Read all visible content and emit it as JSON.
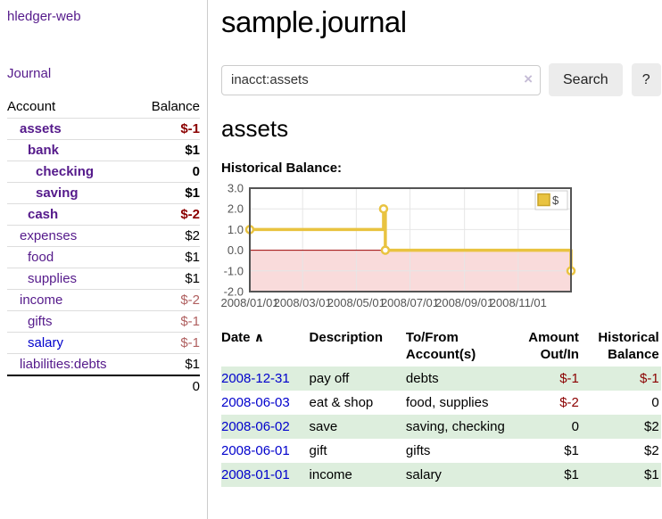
{
  "colors": {
    "link_purple": "#551a8b",
    "link_blue": "#0000cc",
    "negative_strong": "#8b0000",
    "negative_soft": "#b06060",
    "row_stripe_green": "#ddeedd",
    "series_gold": "#e9c340",
    "negative_region_pink": "#f9dbdb",
    "zero_line_red": "#9c0000",
    "grid_gray": "#e6e6e6",
    "chart_border_gray": "#545454",
    "button_gray": "#ececec"
  },
  "sidebar": {
    "app_title": "hledger-web",
    "nav": {
      "journal": "Journal"
    },
    "accounts_table": {
      "headers": {
        "account": "Account",
        "balance": "Balance"
      },
      "rows": [
        {
          "name": "assets",
          "depth": 1,
          "bold": true,
          "link": "purple",
          "balance": "$-1",
          "balance_style": "neg-strong",
          "balance_bold": true
        },
        {
          "name": "bank",
          "depth": 2,
          "bold": true,
          "link": "purple",
          "balance": "$1",
          "balance_style": "",
          "balance_bold": true
        },
        {
          "name": "checking",
          "depth": 3,
          "bold": true,
          "link": "purple",
          "balance": "0",
          "balance_style": "",
          "balance_bold": true
        },
        {
          "name": "saving",
          "depth": 3,
          "bold": true,
          "link": "purple",
          "balance": "$1",
          "balance_style": "",
          "balance_bold": true
        },
        {
          "name": "cash",
          "depth": 2,
          "bold": true,
          "link": "purple",
          "balance": "$-2",
          "balance_style": "neg-strong",
          "balance_bold": true
        },
        {
          "name": "expenses",
          "depth": 1,
          "bold": false,
          "link": "purple",
          "balance": "$2",
          "balance_style": "",
          "balance_bold": false
        },
        {
          "name": "food",
          "depth": 2,
          "bold": false,
          "link": "purple",
          "balance": "$1",
          "balance_style": "",
          "balance_bold": false
        },
        {
          "name": "supplies",
          "depth": 2,
          "bold": false,
          "link": "purple",
          "balance": "$1",
          "balance_style": "",
          "balance_bold": false
        },
        {
          "name": "income",
          "depth": 1,
          "bold": false,
          "link": "purple",
          "balance": "$-2",
          "balance_style": "neg-soft",
          "balance_bold": false
        },
        {
          "name": "gifts",
          "depth": 2,
          "bold": false,
          "link": "purple",
          "balance": "$-1",
          "balance_style": "neg-soft",
          "balance_bold": false
        },
        {
          "name": "salary",
          "depth": 2,
          "bold": false,
          "link": "blue",
          "balance": "$-1",
          "balance_style": "neg-soft",
          "balance_bold": false
        },
        {
          "name": "liabilities:debts",
          "depth": 1,
          "bold": false,
          "link": "purple",
          "balance": "$1",
          "balance_style": "",
          "balance_bold": false
        }
      ],
      "total": "0"
    }
  },
  "main": {
    "title": "sample.journal",
    "search": {
      "value": "inacct:assets",
      "clear_icon": "×",
      "search_label": "Search",
      "help_label": "?"
    },
    "account_heading": "assets",
    "chart_label": "Historical Balance:"
  },
  "chart_data": {
    "type": "line",
    "subtype": "step",
    "title": "Historical Balance of assets",
    "series": [
      {
        "name": "$",
        "points": [
          {
            "date": "2008-01-01",
            "value": 1
          },
          {
            "date": "2008-06-01",
            "value": 2
          },
          {
            "date": "2008-06-03",
            "value": 0
          },
          {
            "date": "2008-12-31",
            "value": -1
          }
        ]
      }
    ],
    "x_tick_labels": [
      "2008/01/01",
      "2008/03/01",
      "2008/05/01",
      "2008/07/01",
      "2008/09/01",
      "2008/11/01"
    ],
    "x_tick_dates": [
      "2008-01-01",
      "2008-03-01",
      "2008-05-01",
      "2008-07-01",
      "2008-09-01",
      "2008-11-01"
    ],
    "y_ticks": [
      "3.0",
      "2.0",
      "1.0",
      "0.0",
      "-1.0",
      "-2.0"
    ],
    "ylim": [
      -2,
      3
    ],
    "grid": true,
    "negative_region_shaded": true,
    "legend": {
      "label": "$",
      "position": "top-right"
    }
  },
  "register": {
    "headers": {
      "date": "Date",
      "sort_icon": "∧",
      "description": "Description",
      "accounts": "To/From Account(s)",
      "amount": "Amount Out/In",
      "balance": "Historical Balance"
    },
    "rows": [
      {
        "date": "2008-12-31",
        "description": "pay off",
        "accounts": "debts",
        "amount": "$-1",
        "amount_neg": true,
        "balance": "$-1",
        "balance_neg": true
      },
      {
        "date": "2008-06-03",
        "description": "eat & shop",
        "accounts": "food, supplies",
        "amount": "$-2",
        "amount_neg": true,
        "balance": "0",
        "balance_neg": false
      },
      {
        "date": "2008-06-02",
        "description": "save",
        "accounts": "saving, checking",
        "amount": "0",
        "amount_neg": false,
        "balance": "$2",
        "balance_neg": false
      },
      {
        "date": "2008-06-01",
        "description": "gift",
        "accounts": "gifts",
        "amount": "$1",
        "amount_neg": false,
        "balance": "$2",
        "balance_neg": false
      },
      {
        "date": "2008-01-01",
        "description": "income",
        "accounts": "salary",
        "amount": "$1",
        "amount_neg": false,
        "balance": "$1",
        "balance_neg": false
      }
    ]
  }
}
